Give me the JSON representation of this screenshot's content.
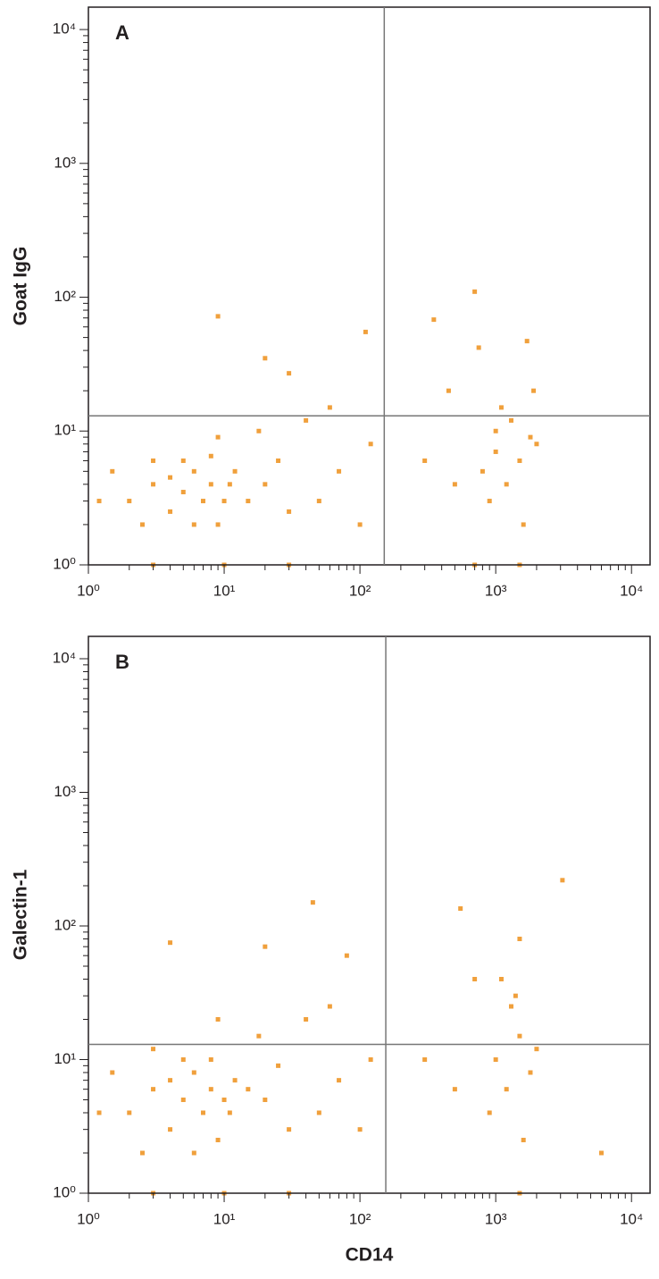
{
  "chart_data": [
    {
      "type": "scatter",
      "panel": "A",
      "ylabel": "Goat IgG",
      "color": "#f0a03c",
      "log_x": true,
      "log_y": true,
      "xlim": [
        1,
        13700
      ],
      "ylim": [
        1,
        14700
      ],
      "xticks": [
        {
          "value": 1,
          "label": "10⁰"
        },
        {
          "value": 10,
          "label": "10¹"
        },
        {
          "value": 100,
          "label": "10²"
        },
        {
          "value": 1000,
          "label": "10³"
        },
        {
          "value": 10000,
          "label": "10⁴"
        }
      ],
      "yticks": [
        {
          "value": 1,
          "label": "10⁰"
        },
        {
          "value": 10,
          "label": "10¹"
        },
        {
          "value": 100,
          "label": "10²"
        },
        {
          "value": 1000,
          "label": "10³"
        },
        {
          "value": 10000,
          "label": "10⁴"
        }
      ],
      "gate_x": 151,
      "gate_y": 13,
      "x": [
        2,
        3,
        4,
        5,
        6,
        7,
        8,
        9,
        10,
        12,
        5,
        4,
        6,
        8,
        11,
        15,
        3,
        2.5,
        1.5,
        1.2,
        20,
        30,
        25,
        50,
        70,
        100,
        120,
        40,
        18,
        9,
        60,
        110,
        9,
        20,
        30,
        300,
        500,
        800,
        1000,
        1200,
        1500,
        1800,
        1000,
        900,
        1300,
        1600,
        1100,
        2000,
        700,
        350,
        1700,
        750,
        450,
        1900,
        700,
        1500,
        3,
        10,
        30
      ],
      "values": [
        3,
        4,
        2.5,
        3.5,
        5,
        3,
        4,
        2,
        3,
        5,
        6,
        4.5,
        2,
        6.5,
        4,
        3,
        6,
        2,
        5,
        3,
        4,
        2.5,
        6,
        3,
        5,
        2,
        8,
        12,
        10,
        9,
        15,
        55,
        72,
        35,
        27,
        6,
        4,
        5,
        7,
        4,
        6,
        9,
        10,
        3,
        12,
        2,
        15,
        8,
        110,
        68,
        47,
        42,
        20,
        20,
        1,
        1,
        1,
        1,
        1
      ]
    },
    {
      "type": "scatter",
      "panel": "B",
      "xlabel": "CD14",
      "ylabel": "Galectin-1",
      "color": "#f0a03c",
      "log_x": true,
      "log_y": true,
      "xlim": [
        1,
        13700
      ],
      "ylim": [
        1,
        14700
      ],
      "xticks": [
        {
          "value": 1,
          "label": "10⁰"
        },
        {
          "value": 10,
          "label": "10¹"
        },
        {
          "value": 100,
          "label": "10²"
        },
        {
          "value": 1000,
          "label": "10³"
        },
        {
          "value": 10000,
          "label": "10⁴"
        }
      ],
      "yticks": [
        {
          "value": 1,
          "label": "10⁰"
        },
        {
          "value": 10,
          "label": "10¹"
        },
        {
          "value": 100,
          "label": "10²"
        },
        {
          "value": 1000,
          "label": "10³"
        },
        {
          "value": 10000,
          "label": "10⁴"
        }
      ],
      "gate_x": 155,
      "gate_y": 13,
      "x": [
        2,
        3,
        4,
        5,
        6,
        7,
        8,
        9,
        10,
        12,
        5,
        4,
        6,
        8,
        11,
        15,
        3,
        2.5,
        1.5,
        1.2,
        20,
        30,
        25,
        50,
        70,
        100,
        120,
        40,
        18,
        9,
        60,
        45,
        4,
        20,
        80,
        300,
        500,
        1000,
        1200,
        1500,
        1800,
        1300,
        900,
        1400,
        1600,
        1100,
        2000,
        3100,
        550,
        1500,
        6000,
        700,
        10,
        30,
        3,
        1500
      ],
      "values": [
        4,
        6,
        3,
        5,
        8,
        4,
        6,
        2.5,
        5,
        7,
        10,
        7,
        2,
        10,
        4,
        6,
        12,
        2,
        8,
        4,
        5,
        3,
        9,
        4,
        7,
        3,
        10,
        20,
        15,
        20,
        25,
        150,
        75,
        70,
        60,
        10,
        6,
        10,
        6,
        15,
        8,
        25,
        4,
        30,
        2.5,
        40,
        12,
        220,
        135,
        80,
        2,
        40,
        1,
        1,
        1,
        1
      ]
    }
  ]
}
